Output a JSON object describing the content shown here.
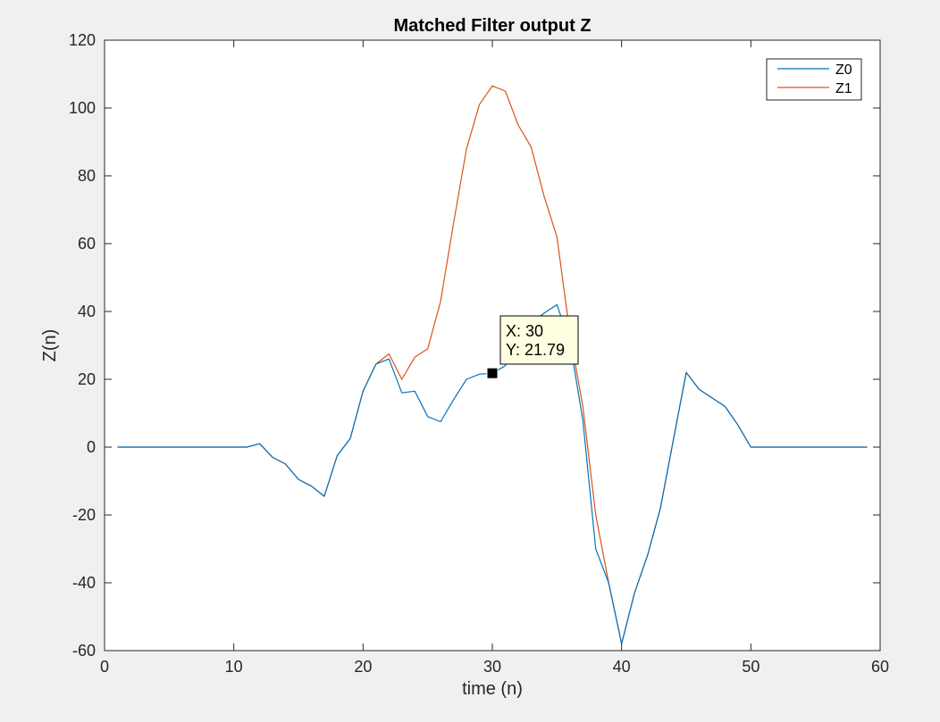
{
  "colors": {
    "figure_background": "#f0f0f0",
    "axes_background": "#ffffff",
    "axis_color": "#262626",
    "z0": "#0072bd",
    "z1": "#d95319",
    "datatip_background": "#ffffe1"
  },
  "chart_data": {
    "type": "line",
    "title": "Matched Filter output Z",
    "xlabel": "time (n)",
    "ylabel": "Z(n)",
    "xlim": [
      0,
      60
    ],
    "ylim": [
      -60,
      120
    ],
    "xticks": [
      0,
      10,
      20,
      30,
      40,
      50,
      60
    ],
    "yticks": [
      -60,
      -40,
      -20,
      0,
      20,
      40,
      60,
      80,
      100,
      120
    ],
    "grid": false,
    "legend_position": "top-right",
    "series": [
      {
        "name": "Z0",
        "color": "#0072bd",
        "x": [
          1,
          2,
          3,
          4,
          5,
          6,
          7,
          8,
          9,
          10,
          11,
          12,
          13,
          14,
          15,
          16,
          17,
          18,
          19,
          20,
          21,
          22,
          23,
          24,
          25,
          26,
          27,
          28,
          29,
          30,
          31,
          32,
          33,
          34,
          35,
          36,
          37,
          38,
          39,
          40,
          41,
          42,
          43,
          44,
          45,
          46,
          47,
          48,
          49,
          50,
          51,
          52,
          53,
          54,
          55,
          56,
          57,
          58,
          59
        ],
        "y": [
          0,
          0,
          0,
          0,
          0,
          0,
          0,
          0,
          0,
          0,
          0,
          1,
          -3,
          -5,
          -9.5,
          -11.5,
          -14.5,
          -2.5,
          2.5,
          16.5,
          24.5,
          26,
          16,
          16.5,
          9,
          7.5,
          14,
          20,
          21.5,
          21.79,
          24,
          33,
          36.5,
          39.5,
          42,
          31,
          8,
          -30,
          -40,
          -58,
          -43,
          -32,
          -18,
          2,
          22,
          17,
          14.5,
          12,
          6.5,
          0,
          0,
          0,
          0,
          0,
          0,
          0,
          0,
          0,
          0
        ]
      },
      {
        "name": "Z1",
        "color": "#d95319",
        "x": [
          1,
          2,
          3,
          4,
          5,
          6,
          7,
          8,
          9,
          10,
          11,
          12,
          13,
          14,
          15,
          16,
          17,
          18,
          19,
          20,
          21,
          22,
          23,
          24,
          25,
          26,
          27,
          28,
          29,
          30,
          31,
          32,
          33,
          34,
          35,
          36,
          37,
          38,
          39,
          40,
          41,
          42,
          43,
          44,
          45,
          46,
          47,
          48,
          49,
          50,
          51,
          52,
          53,
          54,
          55,
          56,
          57,
          58,
          59
        ],
        "y": [
          0,
          0,
          0,
          0,
          0,
          0,
          0,
          0,
          0,
          0,
          0,
          1,
          -3,
          -5,
          -9.5,
          -11.5,
          -14.5,
          -2.5,
          2.5,
          16.5,
          24.5,
          27.5,
          20,
          26.5,
          29,
          43,
          66,
          88,
          101,
          106.5,
          105,
          95,
          88.5,
          74,
          62,
          33.5,
          12,
          -20,
          -40,
          -58,
          -43,
          -32,
          -18,
          2,
          22,
          17,
          14.5,
          12,
          6.5,
          0,
          0,
          0,
          0,
          0,
          0,
          0,
          0,
          0,
          0
        ]
      }
    ],
    "datatip": {
      "x": 30,
      "y": 21.79,
      "x_text": "X: 30",
      "y_text": "Y: 21.79"
    }
  }
}
